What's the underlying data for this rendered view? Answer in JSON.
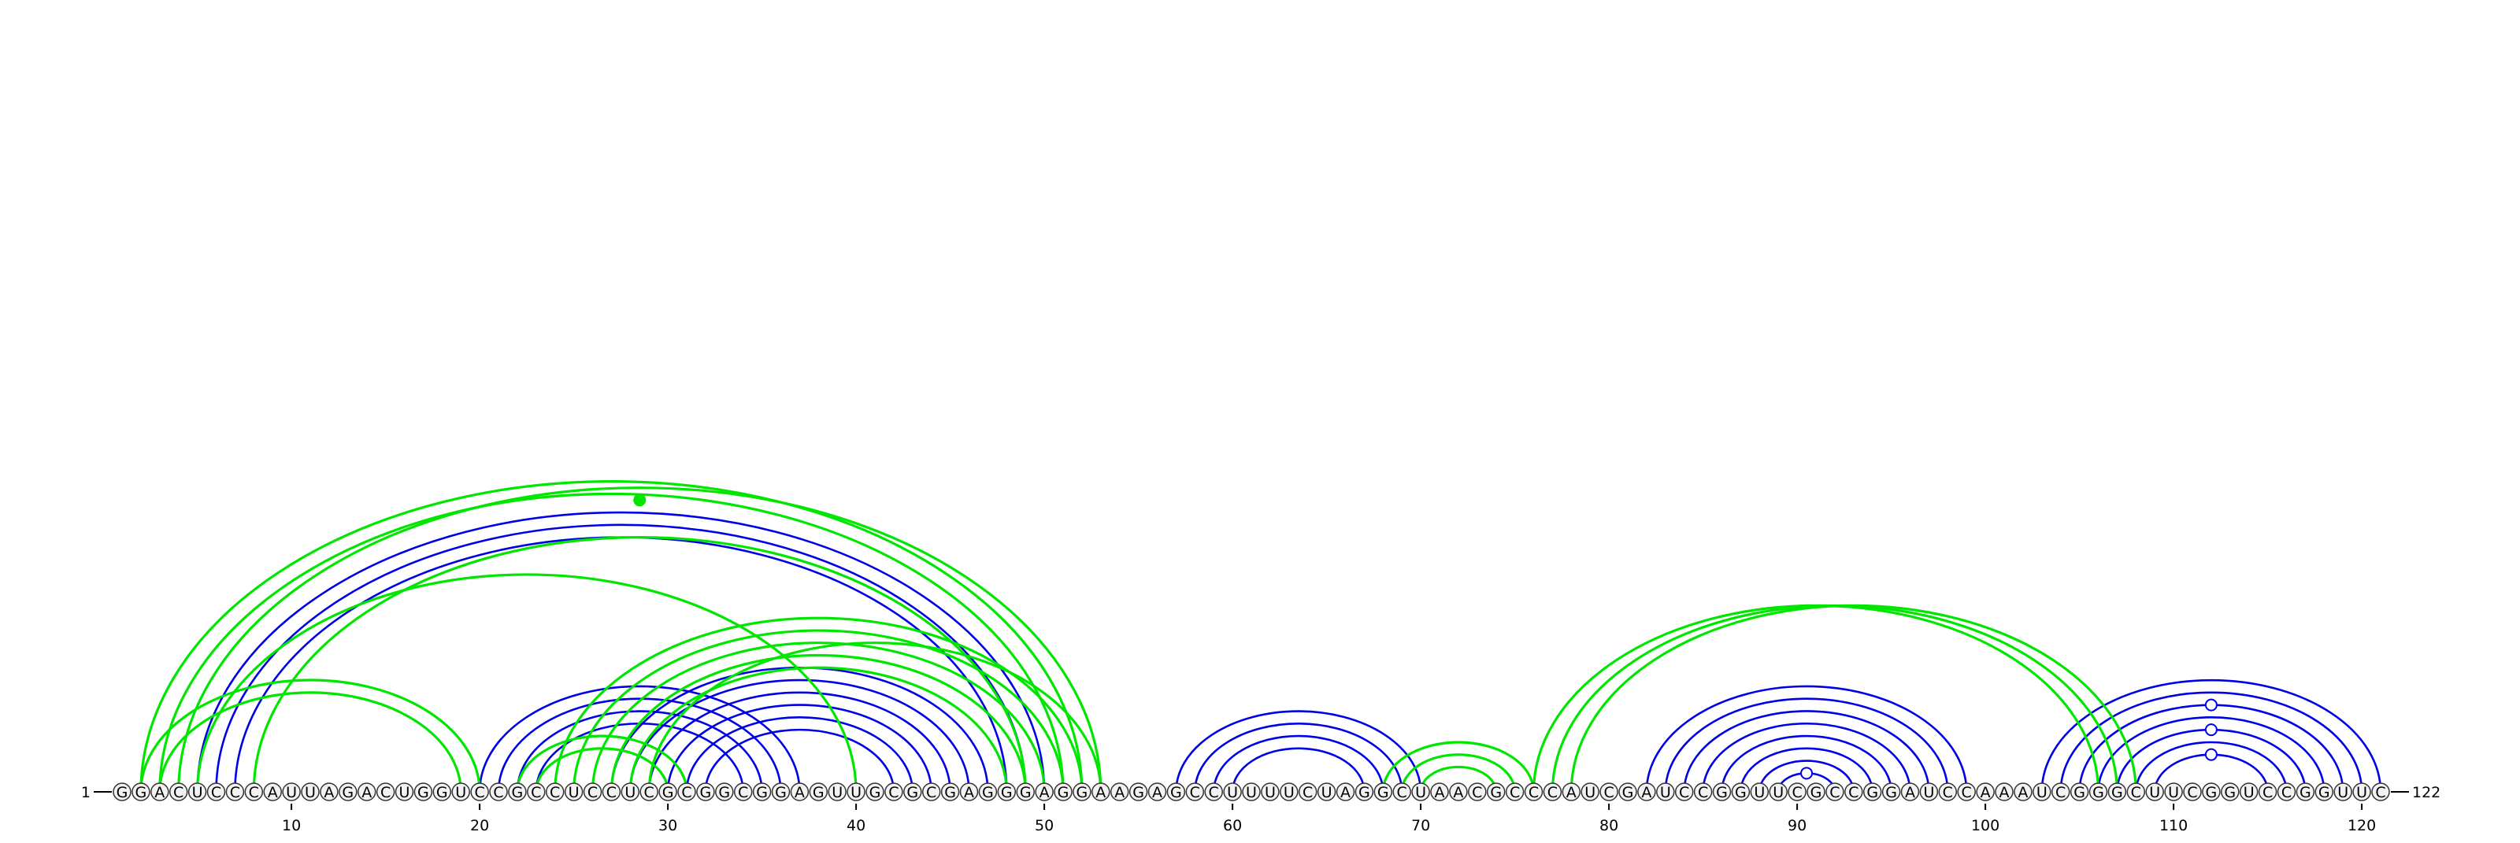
{
  "sequence": "GGACUCCCAUUAGACUGGUCCGCCUCCUCGCGGCGGAGUUGCGCGAGGGAGGAAGAGCCUUUUCUAGGCUAACGCCCAUCGAUCCGGUUCGCCGGAUCCAAAUCGGGCUUCGGUCCGGUUC",
  "start_label": "1",
  "end_label": "122",
  "tick_labels": [
    "10",
    "20",
    "30",
    "40",
    "50",
    "60",
    "70",
    "80",
    "90",
    "100",
    "110",
    "120"
  ],
  "colors": {
    "blue_arc": "#0000e6",
    "green_arc": "#00e600",
    "nucleotide_stroke": "#333333",
    "nucleotide_fill": "#f2f2f2",
    "text": "#000000"
  },
  "arc_groups": [
    {
      "color": "blue",
      "pairs": [
        [
          5,
          50
        ],
        [
          6,
          49
        ],
        [
          7,
          48
        ]
      ]
    },
    {
      "color": "blue",
      "pairs": [
        [
          20,
          37
        ],
        [
          21,
          36
        ],
        [
          22,
          35
        ],
        [
          23,
          34
        ]
      ]
    },
    {
      "color": "blue",
      "pairs": [
        [
          27,
          47
        ],
        [
          28,
          46
        ],
        [
          29,
          45
        ],
        [
          30,
          44
        ],
        [
          31,
          43
        ],
        [
          32,
          42
        ]
      ]
    },
    {
      "color": "blue",
      "pairs": [
        [
          57,
          70
        ],
        [
          58,
          69
        ],
        [
          59,
          68
        ],
        [
          60,
          67
        ]
      ]
    },
    {
      "color": "blue",
      "pairs": [
        [
          82,
          99
        ],
        [
          83,
          98
        ],
        [
          84,
          97
        ],
        [
          85,
          96
        ],
        [
          86,
          95
        ],
        [
          87,
          94
        ],
        [
          88,
          93
        ],
        [
          89,
          92
        ]
      ]
    },
    {
      "color": "blue",
      "pairs": [
        [
          103,
          121
        ],
        [
          104,
          120
        ],
        [
          105,
          119
        ],
        [
          106,
          118
        ],
        [
          107,
          117
        ],
        [
          108,
          116
        ],
        [
          109,
          115
        ]
      ]
    },
    {
      "color": "green",
      "pairs": [
        [
          2,
          52
        ],
        [
          3,
          51
        ],
        [
          4,
          53
        ],
        [
          8,
          49
        ]
      ]
    },
    {
      "color": "green",
      "pairs": [
        [
          2,
          20
        ],
        [
          3,
          19
        ]
      ]
    },
    {
      "color": "green",
      "pairs": [
        [
          5,
          40
        ]
      ]
    },
    {
      "color": "green",
      "pairs": [
        [
          22,
          31
        ],
        [
          23,
          30
        ]
      ]
    },
    {
      "color": "green",
      "pairs": [
        [
          24,
          52
        ],
        [
          25,
          51
        ],
        [
          26,
          50
        ],
        [
          27,
          49
        ],
        [
          28,
          48
        ],
        [
          29,
          53
        ]
      ]
    },
    {
      "color": "green",
      "pairs": [
        [
          68,
          76
        ],
        [
          69,
          75
        ],
        [
          70,
          74
        ]
      ]
    },
    {
      "color": "green",
      "pairs": [
        [
          76,
          106
        ],
        [
          77,
          107
        ],
        [
          78,
          108
        ]
      ]
    }
  ],
  "markers": [
    {
      "color": "green",
      "filled": true,
      "pair": [
        5,
        52
      ],
      "extra_level": 0
    },
    {
      "color": "blue",
      "filled": false,
      "pair": [
        89,
        92
      ],
      "extra_level": 0
    },
    {
      "color": "blue",
      "filled": false,
      "pair": [
        109,
        115
      ],
      "extra_level": 0
    },
    {
      "color": "blue",
      "filled": false,
      "pair": [
        107,
        117
      ],
      "extra_level": 0
    },
    {
      "color": "blue",
      "filled": false,
      "pair": [
        105,
        119
      ],
      "extra_level": 0
    }
  ]
}
